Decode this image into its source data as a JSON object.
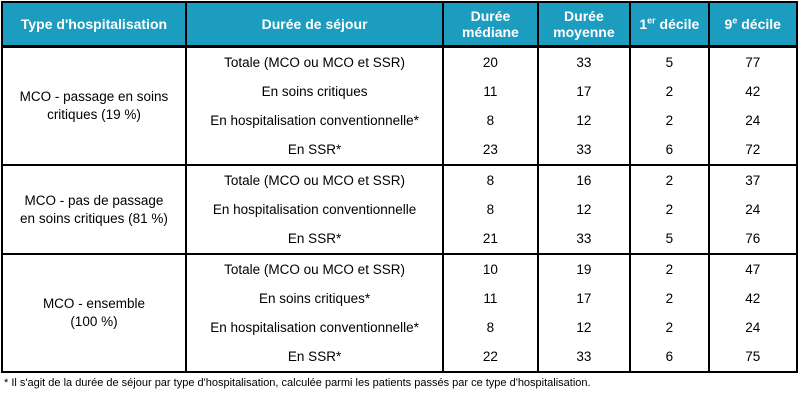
{
  "table": {
    "columns": [
      {
        "label": "Type d'hospitalisation"
      },
      {
        "label": "Durée de séjour"
      },
      {
        "label": "Durée\nmédiane"
      },
      {
        "label": "Durée\nmoyenne"
      },
      {
        "base": "1",
        "sup": "er",
        "rest": " décile"
      },
      {
        "base": "9",
        "sup": "e",
        "rest": " décile"
      }
    ],
    "groups": [
      {
        "label": "MCO - passage en soins\ncritiques (19 %)",
        "rows": [
          {
            "label": "Totale (MCO ou MCO et SSR)",
            "values": [
              "20",
              "33",
              "5",
              "77"
            ]
          },
          {
            "label": "En soins critiques",
            "values": [
              "11",
              "17",
              "2",
              "42"
            ]
          },
          {
            "label": "En hospitalisation conventionnelle*",
            "values": [
              "8",
              "12",
              "2",
              "24"
            ]
          },
          {
            "label": "En SSR*",
            "values": [
              "23",
              "33",
              "6",
              "72"
            ]
          }
        ]
      },
      {
        "label": "MCO - pas de passage\nen soins critiques (81 %)",
        "rows": [
          {
            "label": "Totale (MCO ou MCO et SSR)",
            "values": [
              "8",
              "16",
              "2",
              "37"
            ]
          },
          {
            "label": "En hospitalisation conventionnelle",
            "values": [
              "8",
              "12",
              "2",
              "24"
            ]
          },
          {
            "label": "En SSR*",
            "values": [
              "21",
              "33",
              "5",
              "76"
            ]
          }
        ]
      },
      {
        "label": "MCO - ensemble\n(100 %)",
        "rows": [
          {
            "label": "Totale (MCO ou MCO et SSR)",
            "values": [
              "10",
              "19",
              "2",
              "47"
            ]
          },
          {
            "label": "En soins critiques*",
            "values": [
              "11",
              "17",
              "2",
              "42"
            ]
          },
          {
            "label": "En hospitalisation conventionnelle*",
            "values": [
              "8",
              "12",
              "2",
              "24"
            ]
          },
          {
            "label": "En SSR*",
            "values": [
              "22",
              "33",
              "6",
              "75"
            ]
          }
        ]
      }
    ],
    "footnote": "* Il s'agit de la durée de séjour par type d'hospitalisation, calculée parmi les patients passés par ce type d'hospitalisation.",
    "colors": {
      "header_bg": "#1C9CBE",
      "header_text": "#FFFFFF",
      "border": "#000000",
      "body_text": "#000000"
    }
  }
}
